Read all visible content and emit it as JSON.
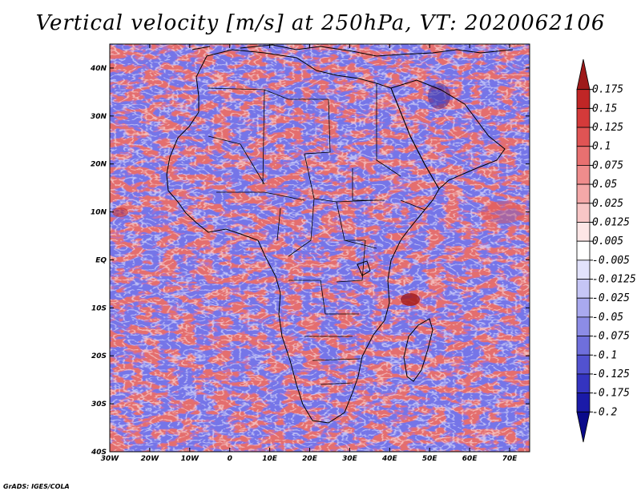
{
  "title": "Vertical velocity [m/s] at 250hPa, VT: 2020062106",
  "footer": "GrADS: IGES/COLA",
  "map": {
    "lon_range": [
      -30,
      75
    ],
    "lat_range": [
      -40,
      45
    ],
    "lon_ticks": [
      "30W",
      "20W",
      "10W",
      "0",
      "10E",
      "20E",
      "30E",
      "40E",
      "50E",
      "60E",
      "70E"
    ],
    "lon_tick_values": [
      -30,
      -20,
      -10,
      0,
      10,
      20,
      30,
      40,
      50,
      60,
      70
    ],
    "lat_ticks": [
      "40N",
      "30N",
      "20N",
      "10N",
      "EQ",
      "10S",
      "20S",
      "30S",
      "40S"
    ],
    "lat_tick_values": [
      40,
      30,
      20,
      10,
      0,
      -10,
      -20,
      -30,
      -40
    ]
  },
  "colorbar": {
    "labels": [
      "0.175",
      "0.15",
      "0.125",
      "0.1",
      "0.075",
      "0.05",
      "0.025",
      "0.0125",
      "0.005",
      "-0.005",
      "-0.0125",
      "-0.025",
      "-0.05",
      "-0.075",
      "-0.1",
      "-0.125",
      "-0.175",
      "-0.2"
    ],
    "colors": [
      "#9e1a1a",
      "#c02626",
      "#d43a3a",
      "#e05454",
      "#e87070",
      "#ef8c8c",
      "#f4a8a8",
      "#f8c6c6",
      "#fde6e6",
      "#ffffff",
      "#e2e2fc",
      "#c6c6f6",
      "#a9a9ef",
      "#8c8ce6",
      "#6f6fdc",
      "#5252d0",
      "#3434c0",
      "#1a1aa8",
      "#0a0a8a"
    ]
  },
  "field": {
    "positive_color": "#e87474",
    "negative_color": "#6b6be6",
    "land_outline_color": "#000000"
  }
}
